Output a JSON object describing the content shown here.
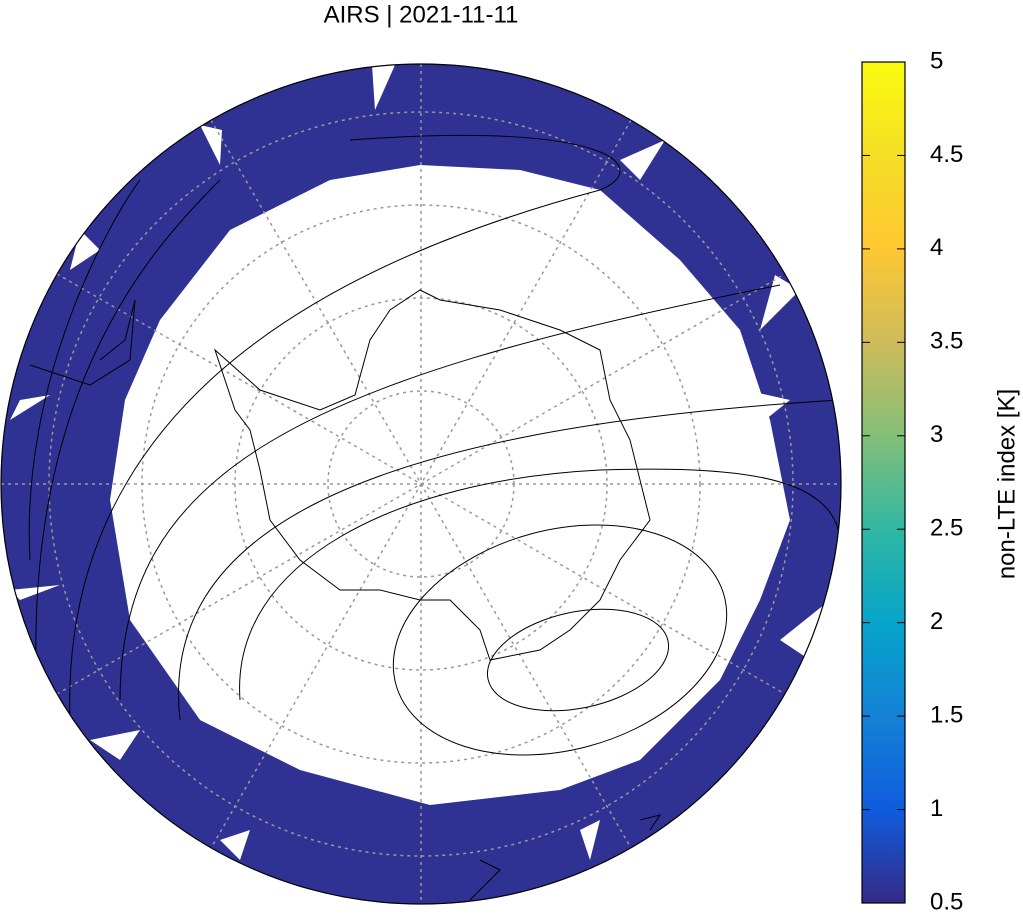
{
  "title": "AIRS | 2021-11-11",
  "colorbar": {
    "label": "non-LTE index [K]",
    "lim": [
      0.5,
      5
    ],
    "ticks": [
      0.5,
      1,
      1.5,
      2,
      2.5,
      3,
      3.5,
      4,
      4.5,
      5
    ]
  }
}
